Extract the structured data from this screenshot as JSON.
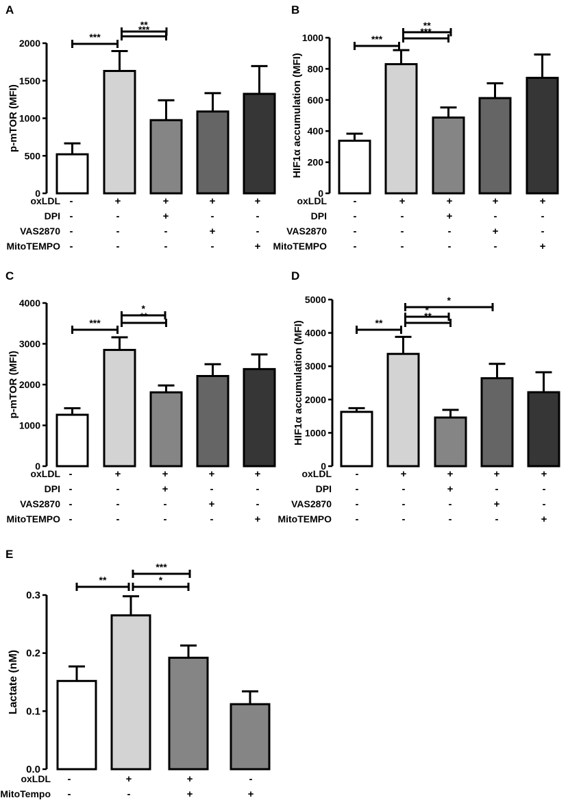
{
  "chart_data": [
    {
      "type": "bar",
      "panel_label": "A",
      "ylabel": "p-mTOR (MFI)",
      "ylim": [
        0,
        2000
      ],
      "yticks": [
        0,
        500,
        1000,
        1500,
        2000
      ],
      "ytick_labels": [
        "0",
        "500",
        "1000",
        "1500",
        "2000"
      ],
      "values": [
        520,
        1630,
        975,
        1090,
        1325
      ],
      "errors": [
        145,
        265,
        265,
        245,
        370
      ],
      "colors": [
        "#ffffff",
        "#d3d3d3",
        "#858585",
        "#656565",
        "#363636"
      ],
      "conditions": [
        {
          "name": "oxLDL",
          "signs": [
            "-",
            "+",
            "+",
            "+",
            "+"
          ]
        },
        {
          "name": "DPI",
          "signs": [
            "-",
            "-",
            "+",
            "-",
            "-"
          ]
        },
        {
          "name": "VAS2870",
          "signs": [
            "-",
            "-",
            "-",
            "+",
            "-"
          ]
        },
        {
          "name": "MitoTEMPO",
          "signs": [
            "-",
            "-",
            "-",
            "-",
            "+"
          ]
        }
      ],
      "significance": [
        {
          "from": 0,
          "to": 1,
          "label": "***"
        },
        {
          "from": 1,
          "to": 2,
          "label": "***"
        },
        {
          "from": 1,
          "to": 3,
          "label": "**"
        }
      ]
    },
    {
      "type": "bar",
      "panel_label": "B",
      "ylabel": "HIF1α accumulation (MFI)",
      "ylim": [
        0,
        1000
      ],
      "yticks": [
        0,
        200,
        400,
        600,
        800,
        1000
      ],
      "ytick_labels": [
        "0",
        "200",
        "400",
        "600",
        "800",
        "1000"
      ],
      "values": [
        338,
        830,
        487,
        612,
        742
      ],
      "errors": [
        45,
        90,
        65,
        95,
        150
      ],
      "colors": [
        "#ffffff",
        "#d3d3d3",
        "#858585",
        "#656565",
        "#363636"
      ],
      "conditions": [
        {
          "name": "oxLDL",
          "signs": [
            "-",
            "+",
            "+",
            "+",
            "+"
          ]
        },
        {
          "name": "DPI",
          "signs": [
            "-",
            "-",
            "+",
            "-",
            "-"
          ]
        },
        {
          "name": "VAS2870",
          "signs": [
            "-",
            "-",
            "-",
            "+",
            "-"
          ]
        },
        {
          "name": "MitoTEMPO",
          "signs": [
            "-",
            "-",
            "-",
            "-",
            "+"
          ]
        }
      ],
      "significance": [
        {
          "from": 0,
          "to": 1,
          "label": "***"
        },
        {
          "from": 1,
          "to": 2,
          "label": "***"
        },
        {
          "from": 1,
          "to": 3,
          "label": "**"
        }
      ]
    },
    {
      "type": "bar",
      "panel_label": "C",
      "ylabel": "p-mTOR (MFI)",
      "ylim": [
        0,
        4000
      ],
      "yticks": [
        0,
        1000,
        2000,
        3000,
        4000
      ],
      "ytick_labels": [
        "0",
        "1000",
        "2000",
        "3000",
        "4000"
      ],
      "values": [
        1260,
        2850,
        1810,
        2210,
        2380
      ],
      "errors": [
        160,
        310,
        170,
        290,
        360
      ],
      "colors": [
        "#ffffff",
        "#d3d3d3",
        "#858585",
        "#656565",
        "#363636"
      ],
      "conditions": [
        {
          "name": "oxLDL",
          "signs": [
            "-",
            "+",
            "+",
            "+",
            "+"
          ]
        },
        {
          "name": "DPI",
          "signs": [
            "-",
            "-",
            "+",
            "-",
            "-"
          ]
        },
        {
          "name": "VAS2870",
          "signs": [
            "-",
            "-",
            "-",
            "+",
            "-"
          ]
        },
        {
          "name": "MitoTEMPO",
          "signs": [
            "-",
            "-",
            "-",
            "-",
            "+"
          ]
        }
      ],
      "significance": [
        {
          "from": 0,
          "to": 1,
          "label": "***"
        },
        {
          "from": 1,
          "to": 2,
          "label": "**"
        },
        {
          "from": 1,
          "to": 3,
          "label": "*"
        }
      ]
    },
    {
      "type": "bar",
      "panel_label": "D",
      "ylabel": "HIF1α accumulation (MFI)",
      "ylim": [
        0,
        5000
      ],
      "yticks": [
        0,
        1000,
        2000,
        3000,
        4000,
        5000
      ],
      "ytick_labels": [
        "0",
        "1000",
        "2000",
        "3000",
        "4000",
        "5000"
      ],
      "values": [
        1630,
        3370,
        1460,
        2640,
        2220
      ],
      "errors": [
        110,
        510,
        230,
        430,
        600
      ],
      "colors": [
        "#ffffff",
        "#d3d3d3",
        "#858585",
        "#656565",
        "#363636"
      ],
      "conditions": [
        {
          "name": "oxLDL",
          "signs": [
            "-",
            "+",
            "+",
            "+",
            "+"
          ]
        },
        {
          "name": "DPI",
          "signs": [
            "-",
            "-",
            "+",
            "-",
            "-"
          ]
        },
        {
          "name": "VAS2870",
          "signs": [
            "-",
            "-",
            "-",
            "+",
            "-"
          ]
        },
        {
          "name": "MitoTEMPO",
          "signs": [
            "-",
            "-",
            "-",
            "-",
            "+"
          ]
        }
      ],
      "significance": [
        {
          "from": 0,
          "to": 1,
          "label": "**"
        },
        {
          "from": 1,
          "to": 2,
          "label": "**"
        },
        {
          "from": 1,
          "to": 3,
          "label": "*"
        },
        {
          "from": 1,
          "to": 4,
          "label": "*"
        }
      ]
    },
    {
      "type": "bar",
      "panel_label": "E",
      "ylabel": "Lactate (nM)",
      "ylim": [
        0,
        0.3
      ],
      "yticks": [
        0,
        0.1,
        0.2,
        0.3
      ],
      "ytick_labels": [
        "0.0",
        "0.1",
        "0.2",
        "0.3"
      ],
      "values": [
        0.152,
        0.265,
        0.192,
        0.112
      ],
      "errors": [
        0.025,
        0.033,
        0.021,
        0.022
      ],
      "colors": [
        "#ffffff",
        "#d3d3d3",
        "#858585",
        "#858585"
      ],
      "conditions": [
        {
          "name": "oxLDL",
          "signs": [
            "-",
            "+",
            "+",
            "-"
          ]
        },
        {
          "name": "MitoTempo",
          "signs": [
            "-",
            "-",
            "+",
            "+"
          ]
        }
      ],
      "significance": [
        {
          "from": 0,
          "to": 1,
          "label": "**"
        },
        {
          "from": 1,
          "to": 2,
          "label": "*"
        },
        {
          "from": 1,
          "to": 3,
          "label": "***"
        }
      ]
    }
  ]
}
